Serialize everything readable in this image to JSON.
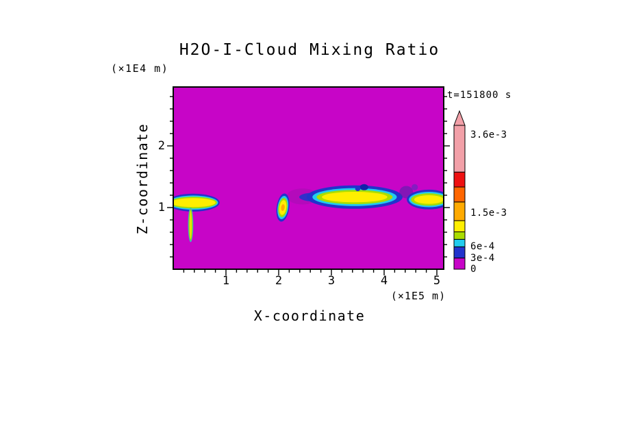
{
  "chart_data": {
    "type": "heatmap",
    "title": "H2O-I-Cloud Mixing Ratio",
    "annotation": "t=151800 s",
    "x_axis": {
      "label": "X-coordinate",
      "unit": "(×1E5 m)",
      "tick_values": [
        1,
        2,
        3,
        4,
        5
      ],
      "minor_step": 0.2,
      "range": [
        0,
        5.13
      ]
    },
    "z_axis": {
      "label": "Z-coordinate",
      "unit": "(×1E4 m)",
      "tick_values": [
        1,
        2
      ],
      "minor_step": 0.2,
      "range": [
        0,
        2.955
      ]
    },
    "background_value": 0,
    "background_color": "#C705C7",
    "colorbar": {
      "vmax": 0.00385,
      "arrow_color": "#F2A0A8",
      "tick_labels": [
        {
          "text": "3.6e-3",
          "value": 0.0036
        },
        {
          "text": "1.5e-3",
          "value": 0.0015
        },
        {
          "text": "6e-4",
          "value": 0.0006
        },
        {
          "text": "3e-4",
          "value": 0.0003
        },
        {
          "text": "0",
          "value": 0
        }
      ],
      "segments": [
        {
          "from": 0,
          "to": 0.0003,
          "color": "#C705C7"
        },
        {
          "from": 0.0003,
          "to": 0.0006,
          "color": "#2233CC"
        },
        {
          "from": 0.0006,
          "to": 0.0008,
          "color": "#22CCEE"
        },
        {
          "from": 0.0008,
          "to": 0.001,
          "color": "#AADD00"
        },
        {
          "from": 0.001,
          "to": 0.0013,
          "color": "#FFEE00"
        },
        {
          "from": 0.0013,
          "to": 0.0018,
          "color": "#FFAA00"
        },
        {
          "from": 0.0018,
          "to": 0.0022,
          "color": "#FF6600"
        },
        {
          "from": 0.0022,
          "to": 0.0026,
          "color": "#EE1111"
        },
        {
          "from": 0.0026,
          "to": 0.00385,
          "color": "#F2A0A8"
        }
      ]
    },
    "features": [
      {
        "name": "purple-smudge-left-of-big-cloud",
        "cx": 2.45,
        "cz": 1.18,
        "rotation": 0,
        "layers": [
          {
            "min_value": 0.00015,
            "color": "#9911AA",
            "opacity": 0.4,
            "rx": 0.3,
            "rz": 0.13
          }
        ]
      },
      {
        "name": "big-cloud-left-tail",
        "cx": 2.72,
        "cz": 1.17,
        "rotation": 0,
        "layers": [
          {
            "min_value": 0.0003,
            "color": "#2233CC",
            "opacity": 0.9,
            "rx": 0.33,
            "rz": 0.075
          }
        ]
      },
      {
        "name": "left-cloud-band",
        "cx": 0.38,
        "cz": 1.08,
        "rotation": 0,
        "layers": [
          {
            "min_value": 0.0003,
            "color": "#2233CC",
            "rx": 0.5,
            "rz": 0.145
          },
          {
            "min_value": 0.0006,
            "color": "#22CCEE",
            "rx": 0.47,
            "rz": 0.115
          },
          {
            "min_value": 0.0008,
            "color": "#AADD00",
            "rx": 0.45,
            "rz": 0.095
          },
          {
            "min_value": 0.001,
            "color": "#FFEE00",
            "rx": 0.42,
            "rz": 0.072
          }
        ]
      },
      {
        "name": "left-fall-streak",
        "cx": 0.33,
        "cz": 0.72,
        "rotation": 0,
        "layers": [
          {
            "min_value": 0.0003,
            "color": "#33BBCC",
            "rx": 0.05,
            "rz": 0.28
          },
          {
            "min_value": 0.0006,
            "color": "#88CC22",
            "rx": 0.038,
            "rz": 0.26
          },
          {
            "min_value": 0.001,
            "color": "#E2E600",
            "rx": 0.024,
            "rz": 0.23
          }
        ]
      },
      {
        "name": "mid-small-cloud",
        "cx": 2.08,
        "cz": 1.0,
        "rotation": 8,
        "layers": [
          {
            "min_value": 0.0003,
            "color": "#2233CC",
            "rx": 0.12,
            "rz": 0.23
          },
          {
            "min_value": 0.0006,
            "color": "#22CCEE",
            "rx": 0.1,
            "rz": 0.19
          },
          {
            "min_value": 0.0008,
            "color": "#AADD00",
            "rx": 0.085,
            "rz": 0.155
          },
          {
            "min_value": 0.001,
            "color": "#FFEE00",
            "rx": 0.065,
            "rz": 0.12
          },
          {
            "min_value": 0.0013,
            "color": "#FFAA00",
            "rx": 0.034,
            "rz": 0.055
          }
        ]
      },
      {
        "name": "big-cloud",
        "cx": 3.44,
        "cz": 1.17,
        "rotation": 0,
        "layers": [
          {
            "min_value": 0.0003,
            "color": "#2233CC",
            "rx": 0.91,
            "rz": 0.19
          },
          {
            "min_value": 0.0006,
            "color": "#22CCEE",
            "rx": 0.8,
            "rz": 0.145
          },
          {
            "min_value": 0.0008,
            "color": "#AADD00",
            "rx": 0.72,
            "rz": 0.115
          },
          {
            "min_value": 0.001,
            "color": "#FFEE00",
            "rx": 0.62,
            "rz": 0.085
          }
        ]
      },
      {
        "name": "navy-spot-on-big-cloud",
        "cx": 3.62,
        "cz": 1.33,
        "rotation": 0,
        "layers": [
          {
            "min_value": 0.0003,
            "color": "#1122AA",
            "rx": 0.08,
            "rz": 0.05
          }
        ]
      },
      {
        "name": "navy-spot-2-on-big-cloud",
        "cx": 3.5,
        "cz": 1.31,
        "rotation": 0,
        "layers": [
          {
            "min_value": 0.0003,
            "color": "#2233CC",
            "rx": 0.05,
            "rz": 0.045
          }
        ]
      },
      {
        "name": "purple-smudge-right",
        "cx": 4.42,
        "cz": 1.25,
        "rotation": 0,
        "layers": [
          {
            "min_value": 0.00015,
            "color": "#5522AA",
            "opacity": 0.6,
            "rx": 0.13,
            "rz": 0.1
          }
        ]
      },
      {
        "name": "purple-dot-right",
        "cx": 4.58,
        "cz": 1.33,
        "rotation": 0,
        "layers": [
          {
            "min_value": 0.00015,
            "color": "#4433BB",
            "opacity": 0.5,
            "rx": 0.06,
            "rz": 0.05
          }
        ]
      },
      {
        "name": "right-cloud",
        "cx": 4.85,
        "cz": 1.13,
        "rotation": 0,
        "layers": [
          {
            "min_value": 0.0003,
            "color": "#2233CC",
            "rx": 0.42,
            "rz": 0.16
          },
          {
            "min_value": 0.0006,
            "color": "#22CCEE",
            "rx": 0.38,
            "rz": 0.125
          },
          {
            "min_value": 0.0008,
            "color": "#AADD00",
            "rx": 0.34,
            "rz": 0.1
          },
          {
            "min_value": 0.001,
            "color": "#FFEE00",
            "rx": 0.28,
            "rz": 0.07
          }
        ]
      }
    ]
  }
}
